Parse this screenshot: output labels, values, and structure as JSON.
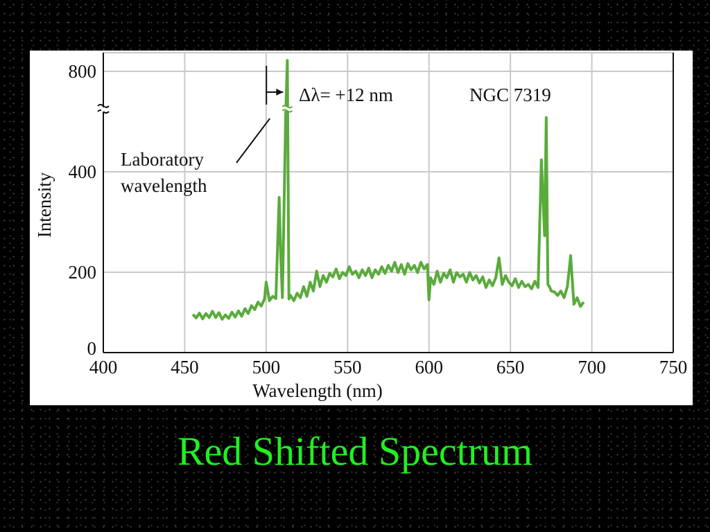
{
  "slide": {
    "title": "Red Shifted Spectrum",
    "title_color": "#22ee22",
    "background_color": "#000000"
  },
  "chart_data": {
    "type": "line",
    "title": "",
    "xlabel": "Wavelength (nm)",
    "ylabel": "Intensity",
    "xlim": [
      400,
      750
    ],
    "ylim": [
      0,
      800
    ],
    "y_axis_break": true,
    "grid": true,
    "x_ticks": [
      400,
      450,
      500,
      550,
      600,
      650,
      700,
      750
    ],
    "y_ticks": [
      0,
      200,
      400,
      800
    ],
    "line_color": "#5aab3c",
    "series": [
      {
        "x": [
          455,
          457,
          459,
          461,
          463,
          465,
          467,
          469,
          471,
          473,
          475,
          477,
          479,
          481,
          483,
          485,
          487,
          489,
          491,
          493,
          495,
          497,
          499,
          500,
          502,
          504,
          506,
          508,
          509,
          510,
          512,
          513,
          514,
          515,
          517,
          519,
          521,
          523,
          525,
          527,
          529,
          531,
          533,
          535,
          537,
          539,
          541,
          543,
          545,
          547,
          549,
          551,
          553,
          555,
          557,
          559,
          561,
          563,
          565,
          567,
          569,
          571,
          573,
          575,
          577,
          579,
          581,
          583,
          585,
          587,
          589,
          591,
          593,
          595,
          597,
          599,
          600,
          601,
          603,
          605,
          607,
          609,
          611,
          613,
          615,
          617,
          619,
          621,
          623,
          625,
          627,
          629,
          631,
          633,
          635,
          637,
          639,
          641,
          643,
          645,
          647,
          649,
          651,
          653,
          655,
          657,
          659,
          661,
          663,
          665,
          667,
          669,
          671,
          672,
          673,
          674,
          675,
          677,
          679,
          681,
          683,
          685,
          687,
          689,
          691,
          693,
          695
        ],
        "values": [
          77,
          69,
          80,
          67,
          79,
          70,
          84,
          70,
          81,
          66,
          76,
          68,
          82,
          71,
          85,
          73,
          90,
          79,
          97,
          88,
          105,
          96,
          112,
          150,
          108,
          118,
          113,
          342,
          205,
          115,
          490,
          830,
          112,
          120,
          108,
          125,
          115,
          140,
          118,
          150,
          130,
          175,
          140,
          165,
          150,
          170,
          162,
          180,
          158,
          172,
          165,
          185,
          168,
          175,
          160,
          178,
          165,
          182,
          160,
          178,
          168,
          185,
          170,
          188,
          175,
          195,
          172,
          190,
          168,
          192,
          178,
          188,
          172,
          195,
          180,
          190,
          110,
          160,
          145,
          175,
          150,
          170,
          160,
          178,
          150,
          172,
          162,
          168,
          150,
          172,
          155,
          165,
          148,
          162,
          138,
          155,
          142,
          160,
          205,
          145,
          165,
          150,
          142,
          158,
          138,
          152,
          140,
          145,
          135,
          152,
          138,
          420,
          255,
          490,
          145,
          140,
          130,
          128,
          120,
          130,
          115,
          140,
          210,
          100,
          115,
          95,
          105
        ]
      }
    ],
    "annotations": [
      {
        "text": "Δλ= +12 nm",
        "at_x": 513
      },
      {
        "text": "NGC 7319"
      },
      {
        "text_lines": [
          "Laboratory",
          "wavelength"
        ],
        "points_to_x": 501
      }
    ]
  }
}
